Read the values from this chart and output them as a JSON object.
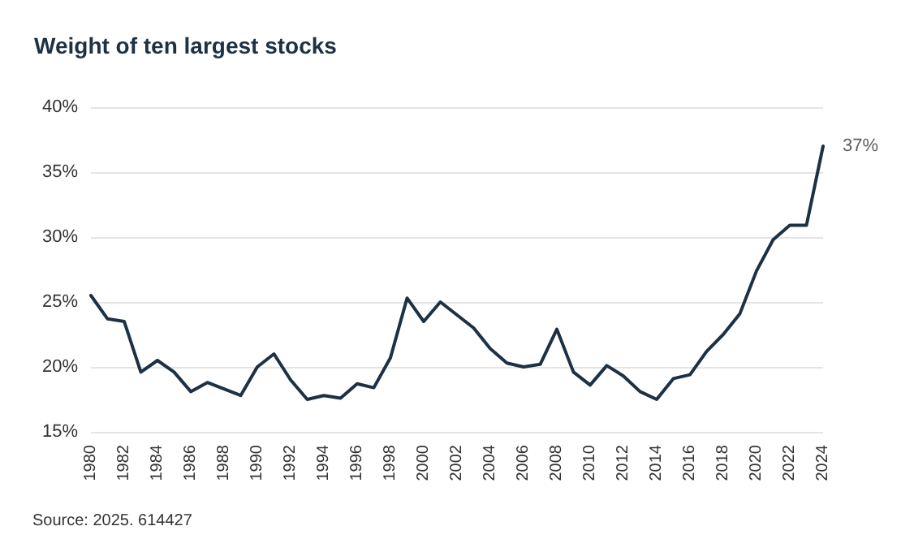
{
  "chart_data": {
    "type": "line",
    "title": "Weight of ten largest stocks",
    "x": [
      1980,
      1981,
      1982,
      1983,
      1984,
      1985,
      1986,
      1987,
      1988,
      1989,
      1990,
      1991,
      1992,
      1993,
      1994,
      1995,
      1996,
      1997,
      1998,
      1999,
      2000,
      2001,
      2002,
      2003,
      2004,
      2005,
      2006,
      2007,
      2008,
      2009,
      2010,
      2011,
      2012,
      2013,
      2014,
      2015,
      2016,
      2017,
      2018,
      2019,
      2020,
      2021,
      2022,
      2023,
      2024
    ],
    "series": [
      {
        "color": "#1c3144",
        "values": [
          25.5,
          23.7,
          23.5,
          19.6,
          20.5,
          19.6,
          18.1,
          18.8,
          18.3,
          17.8,
          20,
          21,
          19,
          17.5,
          17.8,
          17.6,
          18.7,
          18.4,
          20.7,
          25.3,
          23.5,
          25,
          24,
          23,
          21.4,
          20.3,
          20,
          20.2,
          22.9,
          19.6,
          18.6,
          20.1,
          19.3,
          18.1,
          17.5,
          19.1,
          19.4,
          21.2,
          22.5,
          24.1,
          27.4,
          29.8,
          30.9,
          30.9,
          37
        ]
      }
    ],
    "xlim": [
      1980,
      2024
    ],
    "xticks": [
      1980,
      1982,
      1984,
      1986,
      1988,
      1990,
      1992,
      1994,
      1996,
      1998,
      2000,
      2002,
      2004,
      2006,
      2008,
      2010,
      2012,
      2014,
      2016,
      2018,
      2020,
      2022,
      2024
    ],
    "ylim": [
      15,
      40
    ],
    "yticks": [
      {
        "value": 15,
        "label": "15%"
      },
      {
        "value": 20,
        "label": "20%"
      },
      {
        "value": 25,
        "label": "25%"
      },
      {
        "value": 30,
        "label": "30%"
      },
      {
        "value": 35,
        "label": "35%"
      },
      {
        "value": 40,
        "label": "40%"
      }
    ],
    "grid": "y",
    "marker": "none",
    "line_style": "solid",
    "annotations": [
      {
        "text": "37%",
        "x": 2024,
        "y": 37
      },
      "Source: 2025. 614427"
    ]
  }
}
